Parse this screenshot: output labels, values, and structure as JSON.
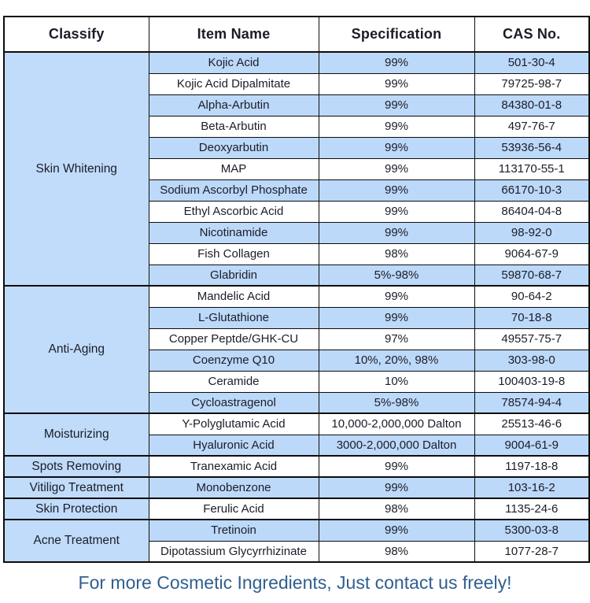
{
  "table": {
    "headers": [
      "Classify",
      "Item Name",
      "Specification",
      "CAS No."
    ],
    "sections": [
      {
        "classify": "Skin Whitening",
        "rows": [
          {
            "item": "Kojic Acid",
            "spec": "99%",
            "cas": "501-30-4"
          },
          {
            "item": "Kojic Acid Dipalmitate",
            "spec": "99%",
            "cas": "79725-98-7"
          },
          {
            "item": "Alpha-Arbutin",
            "spec": "99%",
            "cas": "84380-01-8"
          },
          {
            "item": "Beta-Arbutin",
            "spec": "99%",
            "cas": "497-76-7"
          },
          {
            "item": "Deoxyarbutin",
            "spec": "99%",
            "cas": "53936-56-4"
          },
          {
            "item": "MAP",
            "spec": "99%",
            "cas": "113170-55-1"
          },
          {
            "item": "Sodium Ascorbyl Phosphate",
            "spec": "99%",
            "cas": "66170-10-3"
          },
          {
            "item": "Ethyl Ascorbic Acid",
            "spec": "99%",
            "cas": "86404-04-8"
          },
          {
            "item": "Nicotinamide",
            "spec": "99%",
            "cas": "98-92-0"
          },
          {
            "item": "Fish Collagen",
            "spec": "98%",
            "cas": "9064-67-9"
          },
          {
            "item": "Glabridin",
            "spec": "5%-98%",
            "cas": "59870-68-7"
          }
        ]
      },
      {
        "classify": "Anti-Aging",
        "rows": [
          {
            "item": "Mandelic Acid",
            "spec": "99%",
            "cas": "90-64-2"
          },
          {
            "item": "L-Glutathione",
            "spec": "99%",
            "cas": "70-18-8"
          },
          {
            "item": "Copper Peptde/GHK-CU",
            "spec": "97%",
            "cas": "49557-75-7"
          },
          {
            "item": "Coenzyme Q10",
            "spec": "10%, 20%, 98%",
            "cas": "303-98-0"
          },
          {
            "item": "Ceramide",
            "spec": "10%",
            "cas": "100403-19-8"
          },
          {
            "item": "Cycloastragenol",
            "spec": "5%-98%",
            "cas": "78574-94-4"
          }
        ]
      },
      {
        "classify": "Moisturizing",
        "rows": [
          {
            "item": "Y-Polyglutamic Acid",
            "spec": "10,000-2,000,000 Dalton",
            "cas": "25513-46-6"
          },
          {
            "item": "Hyaluronic Acid",
            "spec": "3000-2,000,000 Dalton",
            "cas": "9004-61-9"
          }
        ]
      },
      {
        "classify": "Spots Removing",
        "rows": [
          {
            "item": "Tranexamic Acid",
            "spec": "99%",
            "cas": "1197-18-8"
          }
        ]
      },
      {
        "classify": "Vitiligo Treatment",
        "rows": [
          {
            "item": "Monobenzone",
            "spec": "99%",
            "cas": "103-16-2"
          }
        ]
      },
      {
        "classify": "Skin Protection",
        "rows": [
          {
            "item": "Ferulic Acid",
            "spec": "98%",
            "cas": "1135-24-6"
          }
        ]
      },
      {
        "classify": "Acne Treatment",
        "rows": [
          {
            "item": "Tretinoin",
            "spec": "99%",
            "cas": "5300-03-8"
          },
          {
            "item": "Dipotassium Glycyrrhizinate",
            "spec": "98%",
            "cas": "1077-28-7"
          }
        ]
      }
    ]
  },
  "footer": {
    "text": "For more Cosmetic Ingredients, Just contact us freely!"
  },
  "colors": {
    "row_blue": "#bcd9f9",
    "classify_blue": "#c0dcfa",
    "border": "#0d0d0d",
    "text": "#1c1c28",
    "footer_text": "#2f5f90"
  }
}
